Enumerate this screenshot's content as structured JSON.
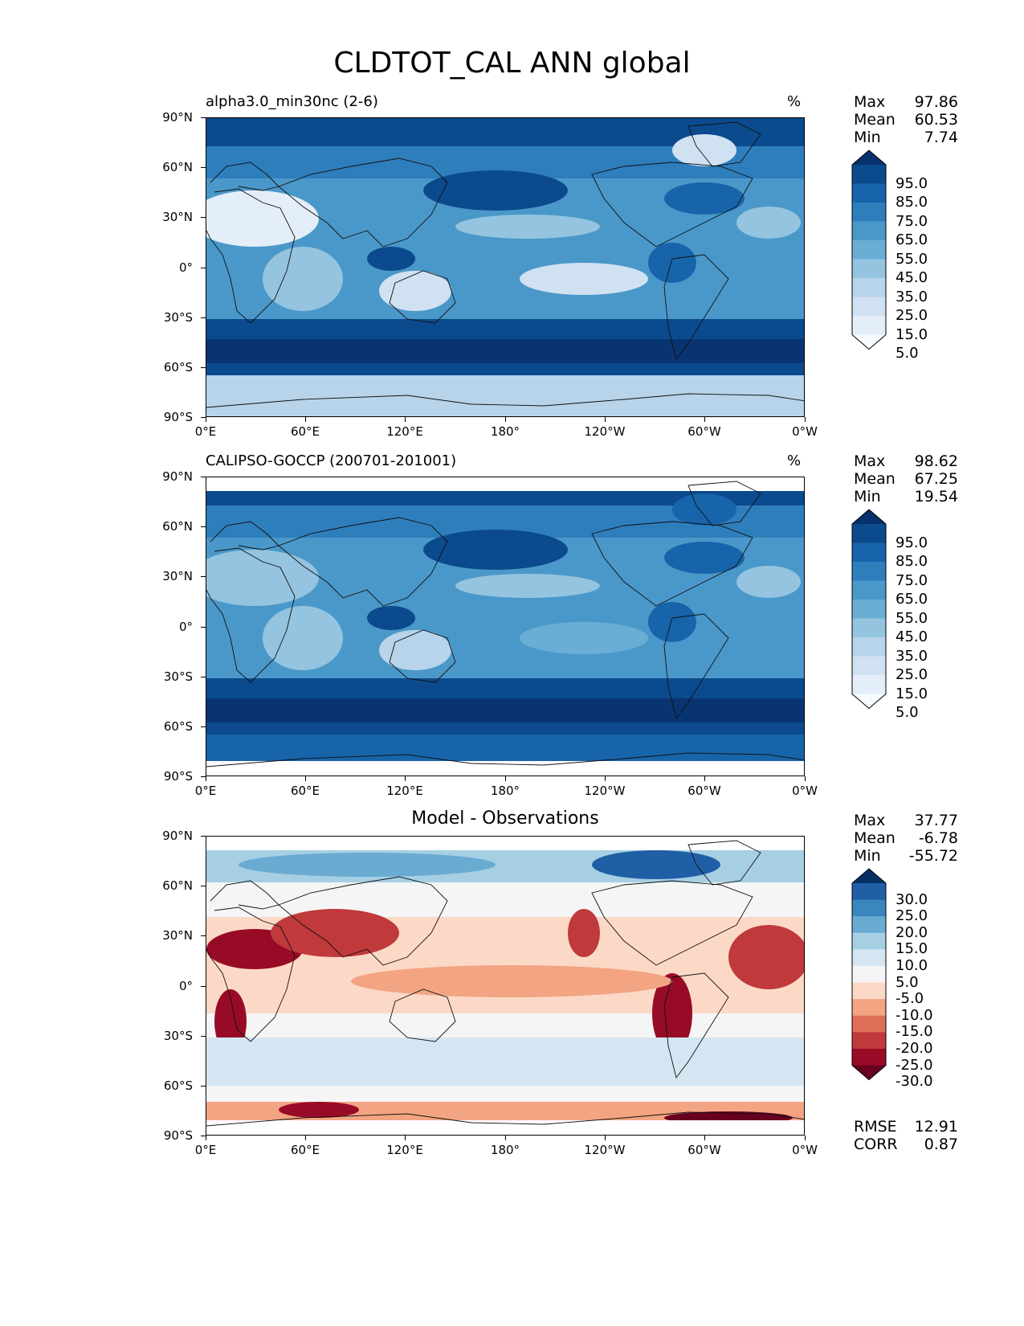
{
  "title": "CLDTOT_CAL ANN global",
  "lat_labels": [
    "90°N",
    "60°N",
    "30°N",
    "0°",
    "30°S",
    "60°S",
    "90°S"
  ],
  "lon_labels": [
    "0°E",
    "60°E",
    "120°E",
    "180°",
    "120°W",
    "60°W",
    "0°W"
  ],
  "panels": [
    {
      "id": "model",
      "title_left": "alpha3.0_min30nc (2-6)",
      "title_center": "",
      "units": "%",
      "stats": [
        {
          "label": "Max",
          "value": "97.86"
        },
        {
          "label": "Mean",
          "value": "60.53"
        },
        {
          "label": "Min",
          "value": "7.74"
        }
      ],
      "colorbar": {
        "labels": [
          "95.0",
          "85.0",
          "75.0",
          "65.0",
          "55.0",
          "45.0",
          "35.0",
          "25.0",
          "15.0",
          "5.0"
        ],
        "colors": [
          "#08306b",
          "#0b4a8d",
          "#1764ab",
          "#2e7ebc",
          "#4a98c9",
          "#6aaed6",
          "#94c4df",
          "#b7d4ea",
          "#d0e1f2",
          "#e3eef8",
          "#f7fbff"
        ]
      },
      "palette": "blues"
    },
    {
      "id": "obs",
      "title_left": "CALIPSO-GOCCP (200701-201001)",
      "title_center": "",
      "units": "%",
      "stats": [
        {
          "label": "Max",
          "value": "98.62"
        },
        {
          "label": "Mean",
          "value": "67.25"
        },
        {
          "label": "Min",
          "value": "19.54"
        }
      ],
      "colorbar": {
        "labels": [
          "95.0",
          "85.0",
          "75.0",
          "65.0",
          "55.0",
          "45.0",
          "35.0",
          "25.0",
          "15.0",
          "5.0"
        ],
        "colors": [
          "#08306b",
          "#0b4a8d",
          "#1764ab",
          "#2e7ebc",
          "#4a98c9",
          "#6aaed6",
          "#94c4df",
          "#b7d4ea",
          "#d0e1f2",
          "#e3eef8",
          "#f7fbff"
        ]
      },
      "palette": "blues"
    },
    {
      "id": "diff",
      "title_left": "",
      "title_center": "Model - Observations",
      "units": "",
      "stats": [
        {
          "label": "Max",
          "value": "37.77"
        },
        {
          "label": "Mean",
          "value": "-6.78"
        },
        {
          "label": "Min",
          "value": "-55.72"
        }
      ],
      "colorbar": {
        "labels": [
          "30.0",
          "25.0",
          "20.0",
          "15.0",
          "10.0",
          "5.0",
          "-5.0",
          "-10.0",
          "-15.0",
          "-20.0",
          "-25.0",
          "-30.0"
        ],
        "colors": [
          "#053061",
          "#1f5fa6",
          "#3a87be",
          "#6aabd2",
          "#a6cfe4",
          "#d4e6f1",
          "#f5f5f5",
          "#fcd9c6",
          "#f3a482",
          "#de6e58",
          "#c0393b",
          "#980b26",
          "#67001f"
        ]
      },
      "palette": "rdbu",
      "bottom_stats": [
        {
          "label": "RMSE",
          "value": "12.91"
        },
        {
          "label": "CORR",
          "value": "0.87"
        }
      ]
    }
  ]
}
